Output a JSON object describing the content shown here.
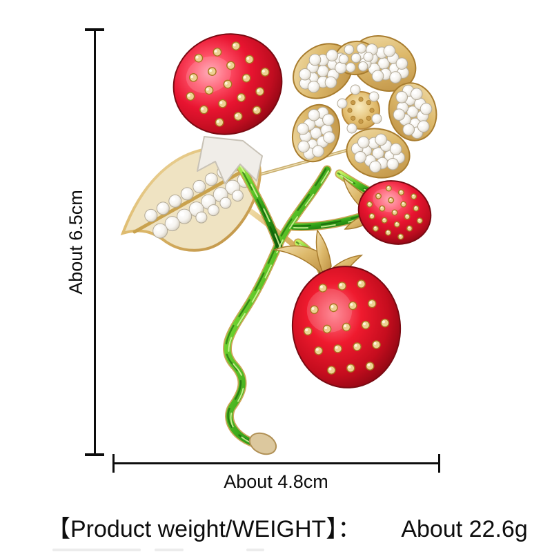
{
  "page": {
    "background": "#ffffff",
    "description": "Product photo of a strawberry rhinestone brooch with size annotations"
  },
  "product": {
    "name": "strawberry-rhinestone-brooch"
  },
  "dimensions": {
    "height_label": "About 6.5cm",
    "width_label": "About 4.8cm"
  },
  "weight": {
    "label": "【Product weight/WEIGHT】：",
    "value": "About 22.6g"
  },
  "colors": {
    "annotation": "#0d0d0d",
    "berry_red": "#e81430",
    "berry_deep": "#870612",
    "berry_highlight": "#ff9cab",
    "leaf_green": "#2f9e17",
    "green_light": "#c2f25e",
    "green_dark": "#15670b",
    "gold": "#ddb96b",
    "gold_deep": "#bb8d40",
    "crystal": "#f6f4f0",
    "silver_calyx": "#f0ede8"
  }
}
